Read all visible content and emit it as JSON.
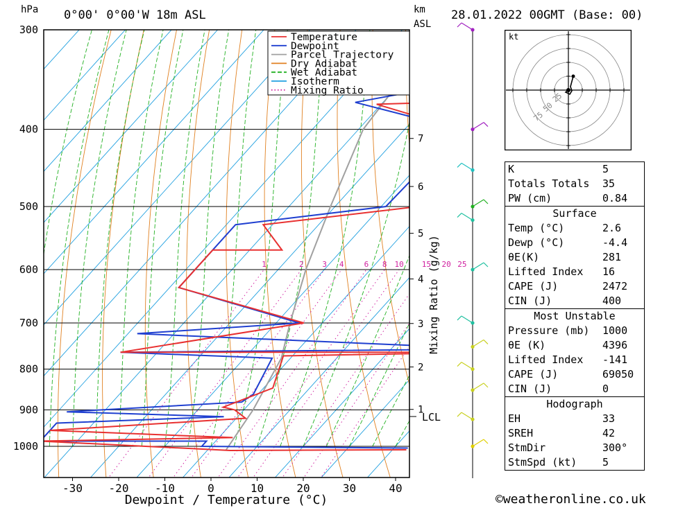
{
  "header": {
    "pressure_unit": "hPa",
    "location": "0°00' 0°00'W 18m ASL",
    "km_unit": "km",
    "asl_unit": "ASL",
    "datetime": "28.01.2022 00GMT (Base: 00)"
  },
  "chart_data": {
    "type": "line",
    "xlabel": "Dewpoint / Temperature (°C)",
    "ylabel": "hPa",
    "right_axis_label": "Mixing Ratio (g/kg)",
    "x_ticks": [
      -30,
      -20,
      -10,
      0,
      10,
      20,
      30,
      40
    ],
    "p_ticks": [
      300,
      400,
      500,
      600,
      700,
      800,
      900,
      1000
    ],
    "km_ticks": [
      1,
      2,
      3,
      4,
      5,
      6,
      7
    ],
    "lcl_label": "LCL",
    "mixing_ratio_labels": [
      "1",
      "2",
      "3",
      "4",
      "6",
      "8",
      "10",
      "15",
      "20",
      "25"
    ],
    "legend": [
      {
        "name": "Temperature",
        "color": "#e83030"
      },
      {
        "name": "Dewpoint",
        "color": "#1f3fd0"
      },
      {
        "name": "Parcel Trajectory",
        "color": "#a0a0a0"
      },
      {
        "name": "Dry Adiabat",
        "color": "#e08020"
      },
      {
        "name": "Wet Adiabat",
        "color": "#20b020"
      },
      {
        "name": "Isotherm",
        "color": "#20a0e0"
      },
      {
        "name": "Mixing Ratio",
        "color": "#d020a0"
      }
    ],
    "series": [
      {
        "name": "Temperature",
        "points": [
          [
            -13,
            300
          ],
          [
            -28,
            340
          ],
          [
            5,
            347
          ],
          [
            14,
            365
          ],
          [
            -31,
            372
          ],
          [
            -8,
            400
          ],
          [
            -2,
            500
          ],
          [
            -32,
            527
          ],
          [
            -23,
            567
          ],
          [
            -38,
            567
          ],
          [
            -38,
            632
          ],
          [
            -4,
            700
          ],
          [
            -38,
            762
          ],
          [
            43,
            762
          ],
          [
            -2,
            770
          ],
          [
            2,
            845
          ],
          [
            -5,
            893
          ],
          [
            -2,
            900
          ],
          [
            2,
            922
          ],
          [
            -38,
            955
          ],
          [
            3,
            975
          ],
          [
            -38,
            985
          ],
          [
            5,
            1012
          ],
          [
            43,
            1010
          ]
        ]
      },
      {
        "name": "Dewpoint",
        "points": [
          [
            -18,
            300
          ],
          [
            -29,
            340
          ],
          [
            -25,
            347
          ],
          [
            -22,
            355
          ],
          [
            -36,
            370
          ],
          [
            -8,
            400
          ],
          [
            -9,
            500
          ],
          [
            -38,
            527
          ],
          [
            -38,
            632
          ],
          [
            -5,
            700
          ],
          [
            -38,
            722
          ],
          [
            43,
            755
          ],
          [
            -38,
            762
          ],
          [
            -4,
            775
          ],
          [
            -1,
            860
          ],
          [
            -2,
            880
          ],
          [
            -38,
            905
          ],
          [
            -3,
            918
          ],
          [
            -38,
            935
          ],
          [
            -38,
            985
          ],
          [
            -2,
            985
          ],
          [
            -2,
            1000
          ],
          [
            43,
            1005
          ]
        ]
      },
      {
        "name": "Parcel Trajectory",
        "points": [
          [
            -32,
            300
          ],
          [
            -29,
            400
          ],
          [
            -21,
            500
          ],
          [
            -14,
            600
          ],
          [
            -7,
            700
          ],
          [
            -2,
            775
          ],
          [
            2,
            900
          ],
          [
            4,
            1012
          ]
        ]
      }
    ]
  },
  "hodograph": {
    "unit": "kt",
    "ring_labels": [
      "25",
      "50",
      "75"
    ]
  },
  "indices": {
    "main": [
      {
        "label": "K",
        "value": "5"
      },
      {
        "label": "Totals Totals",
        "value": "35"
      },
      {
        "label": "PW (cm)",
        "value": "0.84"
      }
    ],
    "surface_title": "Surface",
    "surface": [
      {
        "label": "Temp (°C)",
        "value": "2.6"
      },
      {
        "label": "Dewp (°C)",
        "value": "-4.4"
      },
      {
        "label": "θE(K)",
        "value": "281"
      },
      {
        "label": "Lifted Index",
        "value": "16"
      },
      {
        "label": "CAPE (J)",
        "value": "2472"
      },
      {
        "label": "CIN (J)",
        "value": "400"
      }
    ],
    "mu_title": "Most Unstable",
    "mu": [
      {
        "label": "Pressure (mb)",
        "value": "1000"
      },
      {
        "label": "θE (K)",
        "value": "4396"
      },
      {
        "label": "Lifted Index",
        "value": "-141"
      },
      {
        "label": "CAPE (J)",
        "value": "69050"
      },
      {
        "label": "CIN (J)",
        "value": "0"
      }
    ],
    "hodo_title": "Hodograph",
    "hodo": [
      {
        "label": "EH",
        "value": "33"
      },
      {
        "label": "SREH",
        "value": "42"
      },
      {
        "label": "StmDir",
        "value": "300°"
      },
      {
        "label": "StmSpd (kt)",
        "value": "5"
      }
    ]
  },
  "footer": {
    "copyright": "©weatheronline.co.uk"
  }
}
